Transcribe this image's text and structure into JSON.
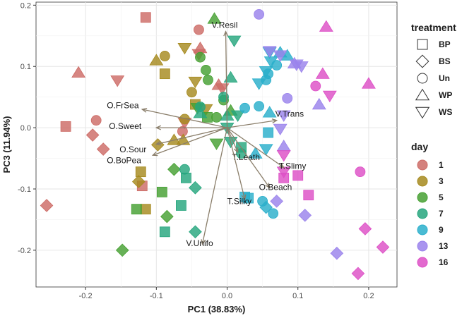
{
  "chart_data": {
    "type": "scatter",
    "subtype": "pca-biplot",
    "xlabel": "PC1 (38.83%)",
    "ylabel": "PC3 (11.94%)",
    "xlim": [
      -0.27,
      0.24
    ],
    "ylim": [
      -0.26,
      0.205
    ],
    "xticks": [
      -0.2,
      -0.1,
      0.0,
      0.1,
      0.2
    ],
    "xtick_labels": [
      "-0.2",
      "-0.1",
      "0.0",
      "0.1",
      "0.2"
    ],
    "yticks": [
      -0.2,
      -0.1,
      0.0,
      0.1,
      0.2
    ],
    "ytick_labels": [
      "-0.2",
      "-0.1",
      "0.0",
      "0.1",
      "0.2"
    ],
    "grid": true,
    "legend_treatment": {
      "title": "treatment",
      "entries": [
        {
          "label": "BP",
          "shape": "square"
        },
        {
          "label": "BS",
          "shape": "diamond"
        },
        {
          "label": "Un",
          "shape": "circle"
        },
        {
          "label": "WP",
          "shape": "triangle-up"
        },
        {
          "label": "WS",
          "shape": "triangle-down"
        }
      ]
    },
    "legend_day": {
      "title": "day",
      "entries": [
        {
          "label": "1",
          "color": "#CD6B66"
        },
        {
          "label": "3",
          "color": "#A68A1F"
        },
        {
          "label": "5",
          "color": "#46A032"
        },
        {
          "label": "7",
          "color": "#26A67E"
        },
        {
          "label": "9",
          "color": "#2AAFCB"
        },
        {
          "label": "13",
          "color": "#9A82EC"
        },
        {
          "label": "16",
          "color": "#DD4FC6"
        }
      ]
    },
    "vectors": [
      {
        "label": "V.Resil",
        "x": -0.002,
        "y": 0.157,
        "lx": -0.022,
        "ly": 0.163
      },
      {
        "label": "V.Trans",
        "x": 0.07,
        "y": 0.012,
        "lx": 0.068,
        "ly": 0.018
      },
      {
        "label": "O.FrSea",
        "x": -0.12,
        "y": 0.03,
        "lx": -0.17,
        "ly": 0.032
      },
      {
        "label": "O.Sweet",
        "x": -0.1,
        "y": 0.0,
        "lx": -0.167,
        "ly": -0.002
      },
      {
        "label": "O.Sour",
        "x": -0.1,
        "y": -0.027,
        "lx": -0.152,
        "ly": -0.04
      },
      {
        "label": "O.BoPea",
        "x": -0.105,
        "y": -0.045,
        "lx": -0.17,
        "ly": -0.058
      },
      {
        "label": "T.Leath",
        "x": 0.015,
        "y": -0.04,
        "lx": 0.007,
        "ly": -0.053
      },
      {
        "label": "T.Slimy",
        "x": 0.08,
        "y": -0.065,
        "lx": 0.073,
        "ly": -0.067
      },
      {
        "label": "O.Beach",
        "x": 0.06,
        "y": -0.098,
        "lx": 0.045,
        "ly": -0.102
      },
      {
        "label": "T.Silky",
        "x": 0.025,
        "y": -0.117,
        "lx": 0.0,
        "ly": -0.125
      },
      {
        "label": "V.Unifo",
        "x": -0.035,
        "y": -0.19,
        "lx": -0.058,
        "ly": -0.193
      }
    ],
    "series": [
      {
        "name": "1",
        "color": "#CD6B66",
        "points": [
          {
            "x": -0.115,
            "y": 0.18,
            "shape": "square"
          },
          {
            "x": -0.21,
            "y": 0.09,
            "shape": "triangle-up"
          },
          {
            "x": -0.155,
            "y": 0.077,
            "shape": "triangle-down"
          },
          {
            "x": -0.228,
            "y": 0.002,
            "shape": "square"
          },
          {
            "x": -0.185,
            "y": 0.012,
            "shape": "circle"
          },
          {
            "x": -0.19,
            "y": -0.012,
            "shape": "diamond"
          },
          {
            "x": -0.175,
            "y": -0.035,
            "shape": "diamond"
          },
          {
            "x": -0.255,
            "y": -0.127,
            "shape": "diamond"
          },
          {
            "x": -0.12,
            "y": -0.095,
            "shape": "square"
          },
          {
            "x": -0.04,
            "y": 0.16,
            "shape": "circle"
          },
          {
            "x": -0.038,
            "y": 0.13,
            "shape": "triangle-up"
          },
          {
            "x": -0.04,
            "y": 0.12,
            "shape": "triangle-down"
          },
          {
            "x": -0.012,
            "y": 0.07,
            "shape": "triangle-up"
          },
          {
            "x": -0.007,
            "y": 0.064,
            "shape": "triangle-down"
          },
          {
            "x": -0.06,
            "y": 0.008,
            "shape": "triangle-down"
          },
          {
            "x": -0.063,
            "y": -0.006,
            "shape": "circle"
          }
        ]
      },
      {
        "name": "3",
        "color": "#A68A1F",
        "points": [
          {
            "x": -0.1,
            "y": 0.11,
            "shape": "triangle-up"
          },
          {
            "x": -0.088,
            "y": 0.117,
            "shape": "circle"
          },
          {
            "x": -0.088,
            "y": 0.088,
            "shape": "square"
          },
          {
            "x": -0.06,
            "y": 0.13,
            "shape": "triangle-down"
          },
          {
            "x": -0.045,
            "y": 0.075,
            "shape": "triangle-down"
          },
          {
            "x": -0.05,
            "y": 0.058,
            "shape": "circle"
          },
          {
            "x": -0.045,
            "y": 0.038,
            "shape": "square"
          },
          {
            "x": -0.03,
            "y": 0.03,
            "shape": "triangle-down"
          },
          {
            "x": -0.06,
            "y": 0.014,
            "shape": "circle"
          },
          {
            "x": -0.075,
            "y": -0.02,
            "shape": "triangle-up"
          },
          {
            "x": -0.062,
            "y": -0.02,
            "shape": "triangle-up"
          },
          {
            "x": -0.098,
            "y": -0.028,
            "shape": "diamond"
          },
          {
            "x": -0.122,
            "y": -0.072,
            "shape": "square"
          },
          {
            "x": -0.125,
            "y": -0.088,
            "shape": "diamond"
          },
          {
            "x": -0.115,
            "y": -0.133,
            "shape": "square"
          }
        ]
      },
      {
        "name": "5",
        "color": "#46A032",
        "points": [
          {
            "x": -0.018,
            "y": 0.178,
            "shape": "triangle-up"
          },
          {
            "x": -0.038,
            "y": 0.115,
            "shape": "circle"
          },
          {
            "x": -0.03,
            "y": 0.094,
            "shape": "circle"
          },
          {
            "x": -0.027,
            "y": 0.078,
            "shape": "circle"
          },
          {
            "x": -0.005,
            "y": 0.045,
            "shape": "circle"
          },
          {
            "x": -0.042,
            "y": 0.032,
            "shape": "triangle-down"
          },
          {
            "x": -0.015,
            "y": 0.017,
            "shape": "circle"
          },
          {
            "x": -0.028,
            "y": 0.017,
            "shape": "square"
          },
          {
            "x": 0.005,
            "y": 0.028,
            "shape": "triangle-up"
          },
          {
            "x": -0.015,
            "y": -0.026,
            "shape": "triangle-down"
          },
          {
            "x": -0.075,
            "y": -0.068,
            "shape": "diamond"
          },
          {
            "x": -0.092,
            "y": -0.105,
            "shape": "square"
          },
          {
            "x": -0.085,
            "y": -0.145,
            "shape": "diamond"
          },
          {
            "x": -0.128,
            "y": -0.133,
            "shape": "square"
          },
          {
            "x": -0.148,
            "y": -0.2,
            "shape": "diamond"
          }
        ]
      },
      {
        "name": "7",
        "color": "#26A67E",
        "points": [
          {
            "x": 0.01,
            "y": 0.142,
            "shape": "triangle-down"
          },
          {
            "x": 0.005,
            "y": 0.082,
            "shape": "triangle-up"
          },
          {
            "x": -0.005,
            "y": 0.05,
            "shape": "circle"
          },
          {
            "x": -0.038,
            "y": 0.034,
            "shape": "circle"
          },
          {
            "x": -0.038,
            "y": 0.024,
            "shape": "triangle-up"
          },
          {
            "x": 0.0,
            "y": 0.02,
            "shape": "triangle-up"
          },
          {
            "x": 0.015,
            "y": 0.02,
            "shape": "triangle-down"
          },
          {
            "x": 0.0,
            "y": 0.0,
            "shape": "triangle-down"
          },
          {
            "x": 0.005,
            "y": -0.023,
            "shape": "triangle-down"
          },
          {
            "x": 0.02,
            "y": -0.032,
            "shape": "square"
          },
          {
            "x": 0.02,
            "y": -0.042,
            "shape": "circle"
          },
          {
            "x": -0.06,
            "y": -0.068,
            "shape": "circle"
          },
          {
            "x": -0.058,
            "y": -0.082,
            "shape": "square"
          },
          {
            "x": -0.045,
            "y": -0.098,
            "shape": "diamond"
          },
          {
            "x": -0.065,
            "y": -0.127,
            "shape": "square"
          },
          {
            "x": -0.088,
            "y": -0.17,
            "shape": "square"
          },
          {
            "x": -0.045,
            "y": -0.17,
            "shape": "diamond"
          }
        ]
      },
      {
        "name": "9",
        "color": "#2AAFCB",
        "points": [
          {
            "x": 0.06,
            "y": 0.123,
            "shape": "triangle-down"
          },
          {
            "x": 0.075,
            "y": 0.123,
            "shape": "triangle-up"
          },
          {
            "x": 0.085,
            "y": 0.118,
            "shape": "triangle-up"
          },
          {
            "x": 0.062,
            "y": 0.108,
            "shape": "triangle-down"
          },
          {
            "x": 0.07,
            "y": 0.102,
            "shape": "circle"
          },
          {
            "x": 0.055,
            "y": 0.092,
            "shape": "triangle-down"
          },
          {
            "x": 0.058,
            "y": 0.088,
            "shape": "circle"
          },
          {
            "x": 0.055,
            "y": 0.078,
            "shape": "circle"
          },
          {
            "x": 0.045,
            "y": 0.072,
            "shape": "triangle-down"
          },
          {
            "x": 0.045,
            "y": 0.035,
            "shape": "circle"
          },
          {
            "x": 0.06,
            "y": 0.025,
            "shape": "triangle-up"
          },
          {
            "x": 0.025,
            "y": 0.032,
            "shape": "circle"
          },
          {
            "x": 0.058,
            "y": -0.008,
            "shape": "square"
          },
          {
            "x": 0.055,
            "y": -0.035,
            "shape": "triangle-down"
          },
          {
            "x": 0.04,
            "y": -0.042,
            "shape": "triangle-up"
          },
          {
            "x": 0.025,
            "y": -0.113,
            "shape": "square"
          },
          {
            "x": 0.03,
            "y": -0.115,
            "shape": "square"
          },
          {
            "x": 0.05,
            "y": -0.12,
            "shape": "circle"
          },
          {
            "x": 0.055,
            "y": -0.13,
            "shape": "diamond"
          },
          {
            "x": 0.065,
            "y": -0.14,
            "shape": "circle"
          }
        ]
      },
      {
        "name": "13",
        "color": "#9A82EC",
        "points": [
          {
            "x": 0.045,
            "y": 0.185,
            "shape": "circle"
          },
          {
            "x": 0.06,
            "y": 0.125,
            "shape": "triangle-down"
          },
          {
            "x": 0.075,
            "y": 0.118,
            "shape": "triangle-down"
          },
          {
            "x": 0.095,
            "y": 0.105,
            "shape": "triangle-up"
          },
          {
            "x": 0.098,
            "y": 0.103,
            "shape": "triangle-down"
          },
          {
            "x": 0.105,
            "y": 0.1,
            "shape": "triangle-down"
          },
          {
            "x": 0.085,
            "y": 0.048,
            "shape": "circle"
          },
          {
            "x": 0.08,
            "y": 0.02,
            "shape": "triangle-down"
          },
          {
            "x": 0.075,
            "y": -0.002,
            "shape": "triangle-down"
          },
          {
            "x": 0.13,
            "y": 0.038,
            "shape": "triangle-up"
          },
          {
            "x": 0.08,
            "y": -0.03,
            "shape": "triangle-up"
          },
          {
            "x": 0.07,
            "y": -0.12,
            "shape": "diamond"
          },
          {
            "x": 0.11,
            "y": -0.143,
            "shape": "diamond"
          },
          {
            "x": 0.155,
            "y": -0.205,
            "shape": "diamond"
          }
        ]
      },
      {
        "name": "16",
        "color": "#DD4FC6",
        "points": [
          {
            "x": 0.14,
            "y": 0.165,
            "shape": "triangle-up"
          },
          {
            "x": 0.135,
            "y": 0.088,
            "shape": "triangle-up"
          },
          {
            "x": 0.125,
            "y": 0.068,
            "shape": "circle"
          },
          {
            "x": 0.145,
            "y": 0.052,
            "shape": "triangle-down"
          },
          {
            "x": 0.2,
            "y": 0.072,
            "shape": "triangle-up"
          },
          {
            "x": 0.08,
            "y": -0.045,
            "shape": "triangle-down"
          },
          {
            "x": 0.08,
            "y": -0.072,
            "shape": "triangle-down"
          },
          {
            "x": 0.08,
            "y": -0.082,
            "shape": "square"
          },
          {
            "x": 0.1,
            "y": -0.078,
            "shape": "square"
          },
          {
            "x": 0.115,
            "y": -0.11,
            "shape": "square"
          },
          {
            "x": 0.188,
            "y": -0.072,
            "shape": "circle"
          },
          {
            "x": 0.195,
            "y": -0.165,
            "shape": "diamond"
          },
          {
            "x": 0.22,
            "y": -0.195,
            "shape": "diamond"
          },
          {
            "x": 0.185,
            "y": -0.238,
            "shape": "diamond"
          }
        ]
      }
    ]
  }
}
